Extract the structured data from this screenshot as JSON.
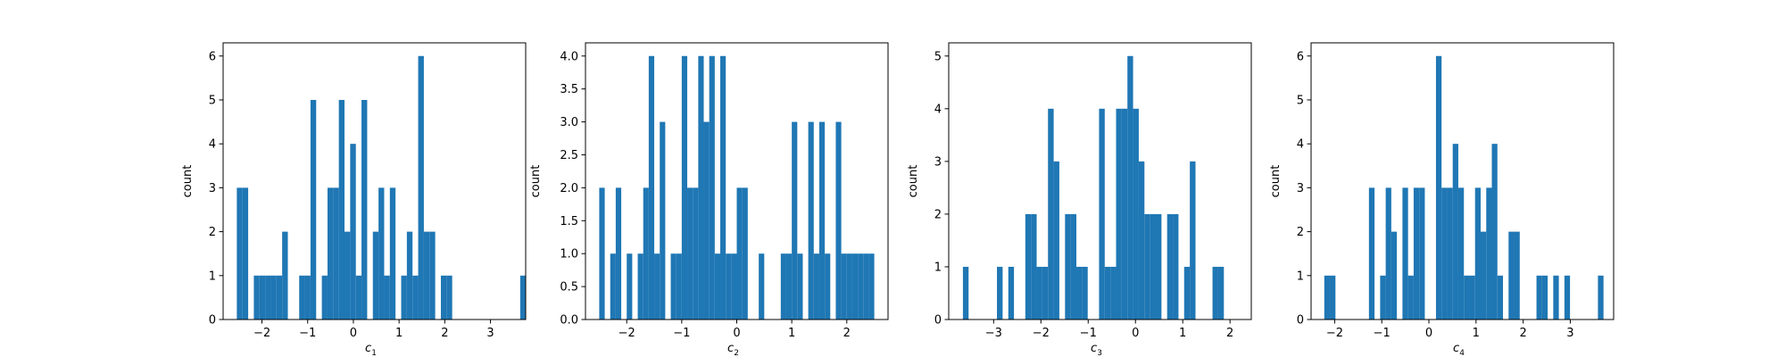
{
  "figure": {
    "background": "#ffffff",
    "bar_color": "#1f77b4"
  },
  "chart_data": [
    {
      "type": "bar",
      "title": "",
      "xlabel": "c",
      "xlabel_sub": "1",
      "ylabel": "count",
      "xlim": [
        -2.85,
        3.77
      ],
      "ylim": [
        0,
        6.3
      ],
      "xticks": [
        {
          "value": -2,
          "label": "−2"
        },
        {
          "value": -1,
          "label": "−1"
        },
        {
          "value": 0,
          "label": "0"
        },
        {
          "value": 1,
          "label": "1"
        },
        {
          "value": 2,
          "label": "2"
        },
        {
          "value": 3,
          "label": "3"
        }
      ],
      "yticks": [
        {
          "value": 0,
          "label": "0"
        },
        {
          "value": 1,
          "label": "1"
        },
        {
          "value": 2,
          "label": "2"
        },
        {
          "value": 3,
          "label": "3"
        },
        {
          "value": 4,
          "label": "4"
        },
        {
          "value": 5,
          "label": "5"
        },
        {
          "value": 6,
          "label": "6"
        }
      ],
      "bin_start": -2.55,
      "bin_width": 0.124,
      "values": [
        3,
        3,
        0,
        1,
        1,
        1,
        1,
        1,
        2,
        0,
        0,
        1,
        1,
        5,
        0,
        1,
        3,
        3,
        5,
        2,
        4,
        1,
        5,
        0,
        2,
        3,
        1,
        3,
        0,
        1,
        2,
        1,
        6,
        2,
        2,
        0,
        1,
        1,
        0,
        0,
        0,
        0,
        0,
        0,
        0,
        0,
        0,
        0,
        0,
        0,
        1
      ]
    },
    {
      "type": "bar",
      "title": "",
      "xlabel": "c",
      "xlabel_sub": "2",
      "ylabel": "count",
      "xlim": [
        -2.75,
        2.75
      ],
      "ylim": [
        0,
        4.2
      ],
      "xticks": [
        {
          "value": -2,
          "label": "−2"
        },
        {
          "value": -1,
          "label": "−1"
        },
        {
          "value": 0,
          "label": "0"
        },
        {
          "value": 1,
          "label": "1"
        },
        {
          "value": 2,
          "label": "2"
        }
      ],
      "yticks": [
        {
          "value": 0,
          "label": "0.0"
        },
        {
          "value": 0.5,
          "label": "0.5"
        },
        {
          "value": 1,
          "label": "1.0"
        },
        {
          "value": 1.5,
          "label": "1.5"
        },
        {
          "value": 2,
          "label": "2.0"
        },
        {
          "value": 2.5,
          "label": "2.5"
        },
        {
          "value": 3,
          "label": "3.0"
        },
        {
          "value": 3.5,
          "label": "3.5"
        },
        {
          "value": 4,
          "label": "4.0"
        }
      ],
      "bin_start": -2.5,
      "bin_width": 0.1,
      "values": [
        2,
        0,
        1,
        2,
        0,
        1,
        0,
        1,
        2,
        4,
        1,
        3,
        0,
        1,
        1,
        4,
        2,
        2,
        4,
        3,
        4,
        1,
        4,
        1,
        1,
        2,
        2,
        0,
        0,
        1,
        0,
        0,
        0,
        1,
        1,
        3,
        1,
        0,
        3,
        1,
        3,
        1,
        0,
        3,
        1,
        1,
        1,
        1,
        1,
        1
      ]
    },
    {
      "type": "bar",
      "title": "",
      "xlabel": "c",
      "xlabel_sub": "3",
      "ylabel": "count",
      "xlim": [
        -3.95,
        2.45
      ],
      "ylim": [
        0,
        5.25
      ],
      "xticks": [
        {
          "value": -3,
          "label": "−3"
        },
        {
          "value": -2,
          "label": "−2"
        },
        {
          "value": -1,
          "label": "−1"
        },
        {
          "value": 0,
          "label": "0"
        },
        {
          "value": 1,
          "label": "1"
        },
        {
          "value": 2,
          "label": "2"
        }
      ],
      "yticks": [
        {
          "value": 0,
          "label": "0"
        },
        {
          "value": 1,
          "label": "1"
        },
        {
          "value": 2,
          "label": "2"
        },
        {
          "value": 3,
          "label": "3"
        },
        {
          "value": 4,
          "label": "4"
        },
        {
          "value": 5,
          "label": "5"
        }
      ],
      "bin_start": -3.65,
      "bin_width": 0.12,
      "values": [
        1,
        0,
        0,
        0,
        0,
        0,
        1,
        0,
        1,
        0,
        0,
        2,
        2,
        1,
        1,
        4,
        3,
        0,
        2,
        2,
        1,
        1,
        0,
        0,
        4,
        1,
        1,
        4,
        4,
        5,
        4,
        3,
        2,
        2,
        2,
        0,
        2,
        2,
        0,
        1,
        3,
        0,
        0,
        0,
        1,
        1
      ]
    },
    {
      "type": "bar",
      "title": "",
      "xlabel": "c",
      "xlabel_sub": "4",
      "ylabel": "count",
      "xlim": [
        -2.5,
        3.92
      ],
      "ylim": [
        0,
        6.3
      ],
      "xticks": [
        {
          "value": -2,
          "label": "−2"
        },
        {
          "value": -1,
          "label": "−1"
        },
        {
          "value": 0,
          "label": "0"
        },
        {
          "value": 1,
          "label": "1"
        },
        {
          "value": 2,
          "label": "2"
        },
        {
          "value": 3,
          "label": "3"
        }
      ],
      "yticks": [
        {
          "value": 0,
          "label": "0"
        },
        {
          "value": 1,
          "label": "1"
        },
        {
          "value": 2,
          "label": "2"
        },
        {
          "value": 3,
          "label": "3"
        },
        {
          "value": 4,
          "label": "4"
        },
        {
          "value": 5,
          "label": "5"
        },
        {
          "value": 6,
          "label": "6"
        }
      ],
      "bin_start": -2.22,
      "bin_width": 0.1185,
      "values": [
        1,
        1,
        0,
        0,
        0,
        0,
        0,
        0,
        3,
        0,
        1,
        3,
        2,
        0,
        3,
        1,
        3,
        3,
        0,
        0,
        6,
        3,
        3,
        4,
        3,
        1,
        1,
        3,
        2,
        3,
        4,
        1,
        0,
        2,
        2,
        0,
        0,
        0,
        1,
        1,
        0,
        1,
        0,
        1,
        0,
        0,
        0,
        0,
        0,
        1
      ]
    }
  ]
}
